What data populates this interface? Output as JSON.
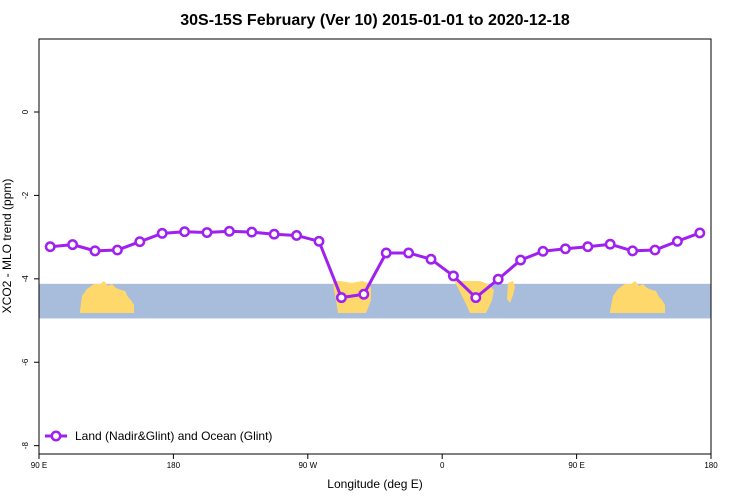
{
  "chart_data": {
    "type": "line",
    "title": "30S-15S February (Ver 10)   2015-01-01 to 2020-12-18",
    "xlabel": "Longitude (deg E)",
    "ylabel": "XCO2 - MLO trend (ppm)",
    "xlim": [
      90,
      540
    ],
    "ylim": [
      -8.2,
      1.75
    ],
    "x_ticks": [
      {
        "value": 90,
        "label": "90 E"
      },
      {
        "value": 180,
        "label": "180"
      },
      {
        "value": 270,
        "label": "90 W"
      },
      {
        "value": 360,
        "label": "0"
      },
      {
        "value": 450,
        "label": "90 E"
      },
      {
        "value": 540,
        "label": "180"
      }
    ],
    "y_ticks": [
      {
        "value": 0,
        "label": "0"
      },
      {
        "value": -2,
        "label": "-2"
      },
      {
        "value": -4,
        "label": "-4"
      },
      {
        "value": -6,
        "label": "-6"
      },
      {
        "value": -8,
        "label": "-8"
      }
    ],
    "map_strip": {
      "y_range": [
        -4.95,
        -4.12
      ],
      "ocean_color": "#a8bcdb",
      "land_color": "#ffd86b"
    },
    "series": [
      {
        "name": "Land (Nadir&Glint) and Ocean (Glint)",
        "color": "#a020f0",
        "x": [
          97.5,
          112.5,
          127.5,
          142.5,
          157.5,
          172.5,
          187.5,
          202.5,
          217.5,
          232.5,
          247.5,
          262.5,
          277.5,
          292.5,
          307.5,
          322.5,
          337.5,
          352.5,
          367.5,
          382.5,
          397.5,
          412.5,
          427.5,
          442.5,
          457.5,
          472.5,
          487.5,
          502.5,
          517.5,
          532.5
        ],
        "values": [
          -3.23,
          -3.18,
          -3.33,
          -3.31,
          -3.11,
          -2.91,
          -2.87,
          -2.89,
          -2.86,
          -2.88,
          -2.93,
          -2.96,
          -3.1,
          -4.45,
          -4.37,
          -3.38,
          -3.38,
          -3.53,
          -3.93,
          -4.45,
          -4.01,
          -3.55,
          -3.34,
          -3.28,
          -3.23,
          -3.17,
          -3.33,
          -3.31,
          -3.1,
          -2.9
        ]
      }
    ],
    "legend": {
      "placement": "bottom-left"
    },
    "grid": false
  }
}
